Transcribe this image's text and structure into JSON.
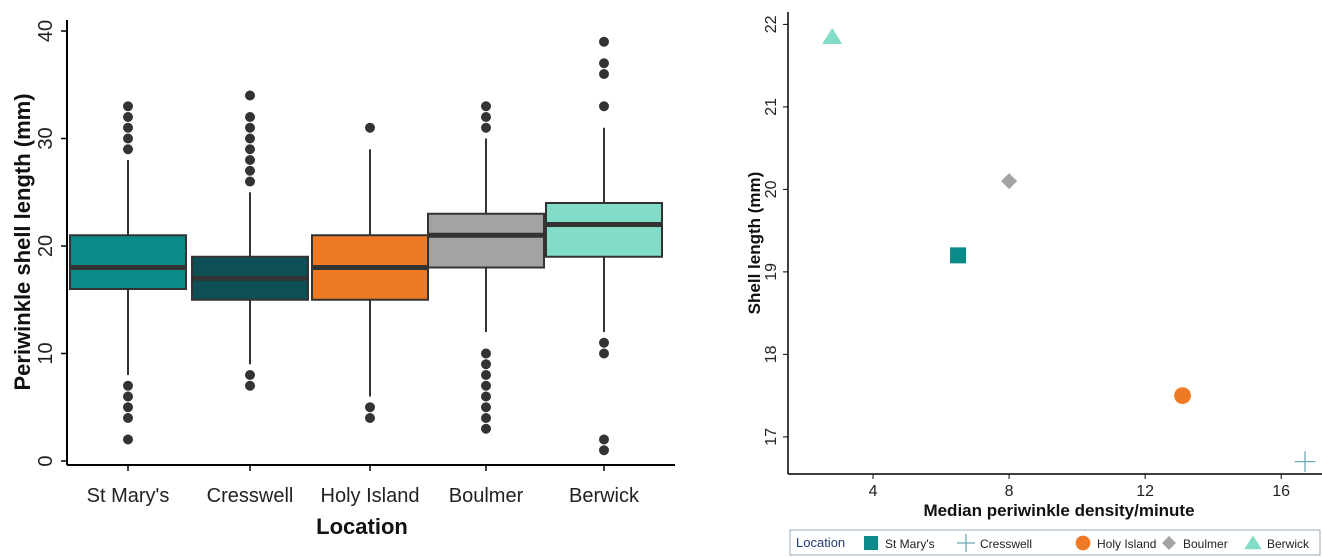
{
  "chart_data": [
    {
      "type": "boxplot",
      "title": "",
      "xlabel": "Location",
      "ylabel": "Periwinkle shell length (mm)",
      "ylim": [
        0,
        40
      ],
      "yticks": [
        "0",
        "10",
        "20",
        "30",
        "40"
      ],
      "categories": [
        "St Mary's",
        "Cresswell",
        "Holy Island",
        "Boulmer",
        "Berwick"
      ],
      "colors": [
        "#0b8a8a",
        "#0d4f55",
        "#ee7a25",
        "#a3a3a3",
        "#83dcc8"
      ],
      "boxes": [
        {
          "name": "St Mary's",
          "whisker_low": 8,
          "q1": 16,
          "median": 18,
          "q3": 21,
          "whisker_high": 28,
          "outliers": [
            2,
            4,
            5,
            6,
            7,
            29,
            30,
            31,
            32,
            33
          ]
        },
        {
          "name": "Cresswell",
          "whisker_low": 9,
          "q1": 15,
          "median": 17,
          "q3": 19,
          "whisker_high": 25,
          "outliers": [
            7,
            8,
            26,
            27,
            28,
            29,
            30,
            31,
            32,
            34
          ]
        },
        {
          "name": "Holy Island",
          "whisker_low": 6,
          "q1": 15,
          "median": 18,
          "q3": 21,
          "whisker_high": 29,
          "outliers": [
            4,
            5,
            31
          ]
        },
        {
          "name": "Boulmer",
          "whisker_low": 12,
          "q1": 18,
          "median": 21,
          "q3": 23,
          "whisker_high": 30,
          "outliers": [
            3,
            4,
            5,
            6,
            7,
            8,
            9,
            10,
            31,
            32,
            33
          ]
        },
        {
          "name": "Berwick",
          "whisker_low": 12,
          "q1": 19,
          "median": 22,
          "q3": 24,
          "whisker_high": 31,
          "outliers": [
            1,
            2,
            10,
            11,
            33,
            36,
            37,
            39
          ]
        }
      ]
    },
    {
      "type": "scatter",
      "title": "",
      "xlabel": "Median periwinkle density/minute",
      "ylabel": "Shell length (mm)",
      "xlim": [
        1.5,
        17.2
      ],
      "ylim": [
        16.55,
        22.15
      ],
      "xticks": [
        "4",
        "8",
        "12",
        "16"
      ],
      "yticks": [
        "17",
        "18",
        "19",
        "20",
        "21",
        "22"
      ],
      "legend_title": "Location",
      "legend_position": "bottom",
      "points": [
        {
          "name": "St Mary's",
          "x": 6.5,
          "y": 19.2,
          "marker": "square",
          "color": "#0b8a8a"
        },
        {
          "name": "Cresswell",
          "x": 16.7,
          "y": 16.7,
          "marker": "plus",
          "color": "#6fa8b8"
        },
        {
          "name": "Holy Island",
          "x": 13.1,
          "y": 17.5,
          "marker": "circle",
          "color": "#ee7a25"
        },
        {
          "name": "Boulmer",
          "x": 8.0,
          "y": 20.1,
          "marker": "diamond",
          "color": "#a3a3a3"
        },
        {
          "name": "Berwick",
          "x": 2.8,
          "y": 21.85,
          "marker": "triangle",
          "color": "#83dcc8"
        }
      ]
    }
  ]
}
